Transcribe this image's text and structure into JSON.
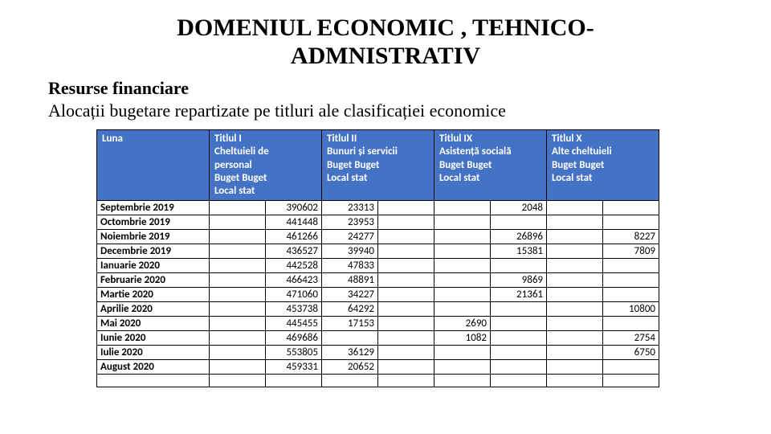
{
  "title_line1": "DOMENIUL  ECONOMIC , TEHNICO-",
  "title_line2": "ADMNISTRATIV",
  "subheading1": "Resurse financiare",
  "subheading2": "Alocații bugetare repartizate pe titluri ale clasificației economice",
  "header": {
    "luna": "Luna",
    "t1": "Titlul I\nCheltuieli de\npersonal\nBuget   Buget\nLocal     stat",
    "t2": "Titlul II\nBunuri și servicii\nBuget   Buget\nLocal     stat",
    "t9": "Titlul IX\nAsistență socială\nBuget   Buget\nLocal     stat",
    "t10": "Titlul X\nAlte cheltuieli\nBuget   Buget\nLocal     stat"
  },
  "months": [
    "Septembrie 2019",
    "Octombrie 2019",
    "Noiembrie 2019",
    "Decembrie 2019",
    "Ianuarie 2020",
    "Februarie 2020",
    "Martie 2020",
    "Aprilie 2020",
    "Mai 2020",
    "Iunie 2020",
    "Iulie 2020",
    "August 2020"
  ],
  "t1_local": [
    "",
    "",
    "",
    "",
    "",
    "",
    "",
    "",
    "",
    "",
    "",
    ""
  ],
  "t1_stat": [
    "390602",
    "441448",
    "461266",
    "436527",
    "442528",
    "466423",
    "471060",
    "453738",
    "445455",
    "469686",
    "553805",
    "459331"
  ],
  "t2_local": [
    "23313",
    "23953",
    "24277",
    "39940",
    "47833",
    "48891",
    "34227",
    "64292",
    "17153",
    "",
    "36129",
    "20652"
  ],
  "t2_stat": [
    "",
    "",
    "",
    "",
    "",
    "",
    "",
    "",
    "",
    "",
    "",
    ""
  ],
  "t9_local": [
    "",
    "",
    "",
    "",
    "",
    "",
    "",
    "",
    "2690",
    "1082",
    "",
    ""
  ],
  "t9_stat": [
    "2048",
    "",
    "26896",
    "15381",
    "",
    "9869",
    "21361",
    "",
    "",
    "",
    "",
    ""
  ],
  "t10_local": [
    "",
    "",
    "",
    "",
    "",
    "",
    "",
    "",
    "",
    "",
    "",
    ""
  ],
  "t10_stat": [
    "",
    "",
    "8227",
    "7809",
    "",
    "",
    "",
    "10800",
    "",
    "2754",
    "6750",
    ""
  ],
  "colors": {
    "header_bg": "#4472c4",
    "header_fg": "#ffffff",
    "border": "#000000",
    "page_bg": "#ffffff"
  }
}
